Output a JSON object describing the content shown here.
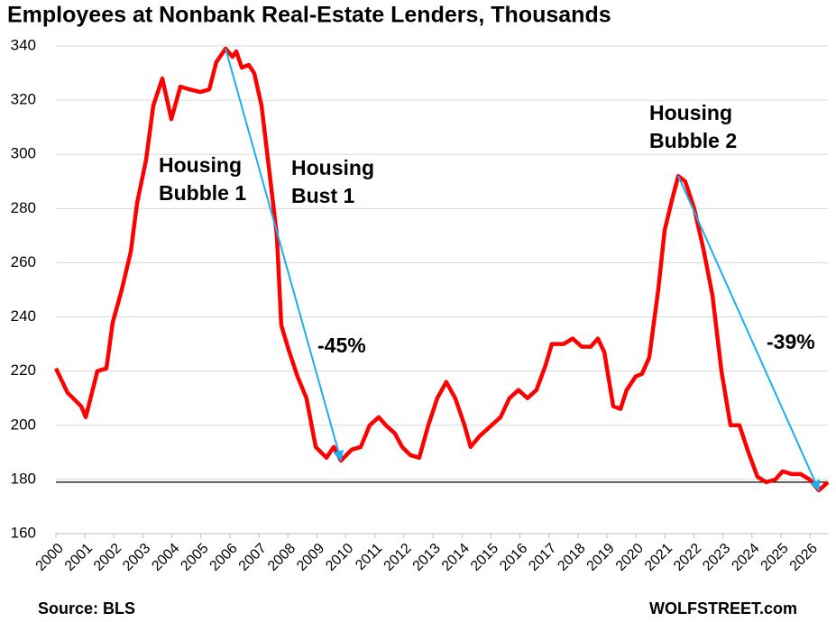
{
  "chart_data": {
    "type": "line",
    "title": "Employees at Nonbank Real-Estate Lenders, Thousands",
    "source": "Source: BLS",
    "credit": "WOLFSTREET.com",
    "x": [
      2000.0,
      2000.4,
      2000.87,
      2001.03,
      2001.43,
      2001.74,
      2001.96,
      2002.27,
      2002.58,
      2002.8,
      2003.11,
      2003.36,
      2003.67,
      2003.98,
      2004.29,
      2004.6,
      2004.98,
      2005.29,
      2005.53,
      2005.85,
      2006.09,
      2006.22,
      2006.41,
      2006.65,
      2006.84,
      2007.09,
      2007.4,
      2007.62,
      2007.77,
      2008.02,
      2008.33,
      2008.64,
      2008.96,
      2009.33,
      2009.58,
      2009.83,
      2010.2,
      2010.51,
      2010.82,
      2011.13,
      2011.38,
      2011.69,
      2011.94,
      2012.22,
      2012.53,
      2012.84,
      2013.15,
      2013.46,
      2013.77,
      2014.09,
      2014.3,
      2014.61,
      2015.02,
      2015.33,
      2015.64,
      2015.95,
      2016.26,
      2016.57,
      2016.88,
      2017.1,
      2017.51,
      2017.82,
      2018.13,
      2018.44,
      2018.69,
      2018.91,
      2019.22,
      2019.47,
      2019.68,
      2019.99,
      2020.21,
      2020.46,
      2020.77,
      2020.99,
      2021.24,
      2021.46,
      2021.7,
      2022.01,
      2022.33,
      2022.64,
      2022.95,
      2023.26,
      2023.57,
      2023.88,
      2024.19,
      2024.5,
      2024.81,
      2025.06,
      2025.37,
      2025.68,
      2025.99,
      2026.31,
      2026.62
    ],
    "series": [
      {
        "name": "Employees",
        "color": "#ff0000",
        "values": [
          221,
          212,
          207,
          203,
          220,
          221,
          238,
          250,
          264,
          282,
          298,
          318,
          328,
          313,
          325,
          324,
          323,
          324,
          334,
          339,
          336,
          338,
          332,
          333,
          330,
          318,
          290,
          270,
          237,
          228,
          218,
          210,
          192,
          188,
          192,
          187,
          191,
          192,
          200,
          203,
          200,
          197,
          192,
          189,
          188,
          200,
          210,
          216,
          210,
          200,
          192,
          196,
          200,
          203,
          210,
          213,
          210,
          213,
          222,
          230,
          230,
          232,
          229,
          229,
          232,
          227,
          207,
          206,
          213,
          218,
          219,
          225,
          250,
          272,
          283,
          292,
          290,
          280,
          265,
          248,
          220,
          200,
          200,
          190,
          181,
          179,
          180,
          183,
          182,
          182,
          180,
          176,
          179
        ]
      }
    ],
    "xlim": [
      2000,
      2026.62
    ],
    "xticks": [
      2000,
      2001,
      2002,
      2003,
      2004,
      2005,
      2006,
      2007,
      2008,
      2009,
      2010,
      2011,
      2012,
      2013,
      2014,
      2015,
      2016,
      2017,
      2018,
      2019,
      2020,
      2021,
      2022,
      2023,
      2024,
      2025,
      2026
    ],
    "ylim": [
      160,
      340
    ],
    "yticks": [
      160,
      180,
      200,
      220,
      240,
      260,
      280,
      300,
      320,
      340
    ],
    "grid": true,
    "hline": 179,
    "annotations": [
      {
        "lines": [
          "Housing",
          "Bubble 1"
        ],
        "color": "#ff0000"
      },
      {
        "lines": [
          "Housing",
          "Bust 1"
        ],
        "color": "#ff0000"
      },
      {
        "lines": [
          "Housing",
          "Bubble 2"
        ],
        "color": "#ff0000"
      },
      {
        "lines": [
          "-45%"
        ],
        "color": "#1ab0f0"
      },
      {
        "lines": [
          "-39%"
        ],
        "color": "#1ab0f0"
      }
    ],
    "arrow_color": "#1ab0f0"
  }
}
